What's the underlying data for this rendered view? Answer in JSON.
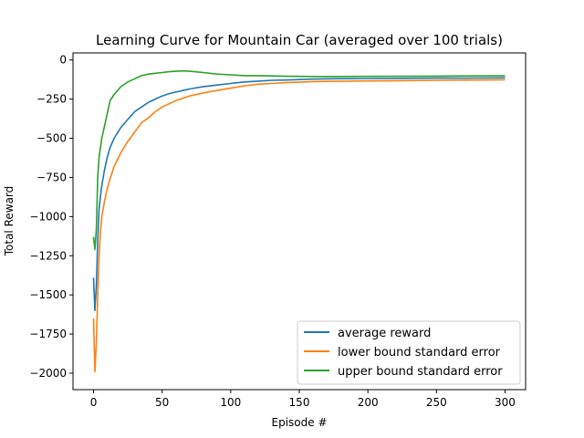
{
  "chart_data": {
    "type": "line",
    "title": "Learning Curve for Mountain Car (averaged over 100 trials)",
    "xlabel": "Episode #",
    "ylabel": "Total Reward",
    "xlim": [
      -15,
      315
    ],
    "ylim": [
      -2105,
      45
    ],
    "xticks": [
      0,
      50,
      100,
      150,
      200,
      250,
      300
    ],
    "yticks": [
      0,
      -250,
      -500,
      -750,
      -1000,
      -1250,
      -1500,
      -1750,
      -2000
    ],
    "grid": false,
    "legend": "bottom-right",
    "x": [
      0,
      1,
      2,
      3,
      4,
      5,
      6,
      8,
      10,
      12,
      15,
      20,
      25,
      30,
      35,
      40,
      45,
      50,
      55,
      60,
      65,
      70,
      80,
      90,
      100,
      110,
      120,
      130,
      140,
      150,
      160,
      175,
      200,
      225,
      250,
      275,
      300
    ],
    "series": [
      {
        "name": "average reward",
        "color": "#1f77b4",
        "values": [
          -1390,
          -1600,
          -1440,
          -1150,
          -950,
          -870,
          -800,
          -700,
          -620,
          -560,
          -500,
          -430,
          -380,
          -330,
          -300,
          -270,
          -250,
          -230,
          -215,
          -205,
          -195,
          -185,
          -170,
          -160,
          -150,
          -140,
          -135,
          -130,
          -128,
          -125,
          -122,
          -120,
          -118,
          -117,
          -116,
          -115,
          -114
        ]
      },
      {
        "name": "lower bound standard error",
        "color": "#ff7f0e",
        "values": [
          -1650,
          -1990,
          -1800,
          -1500,
          -1250,
          -1100,
          -1000,
          -900,
          -820,
          -760,
          -680,
          -590,
          -520,
          -460,
          -400,
          -370,
          -330,
          -300,
          -280,
          -260,
          -245,
          -230,
          -210,
          -195,
          -180,
          -165,
          -155,
          -150,
          -145,
          -142,
          -138,
          -136,
          -134,
          -132,
          -130,
          -128,
          -127
        ]
      },
      {
        "name": "upper bound standard error",
        "color": "#2ca02c",
        "values": [
          -1130,
          -1210,
          -1080,
          -750,
          -620,
          -560,
          -500,
          -420,
          -340,
          -260,
          -220,
          -170,
          -140,
          -120,
          -100,
          -90,
          -85,
          -80,
          -75,
          -72,
          -70,
          -72,
          -80,
          -90,
          -95,
          -100,
          -100,
          -102,
          -104,
          -105,
          -106,
          -106,
          -105,
          -104,
          -103,
          -102,
          -101
        ]
      }
    ]
  }
}
